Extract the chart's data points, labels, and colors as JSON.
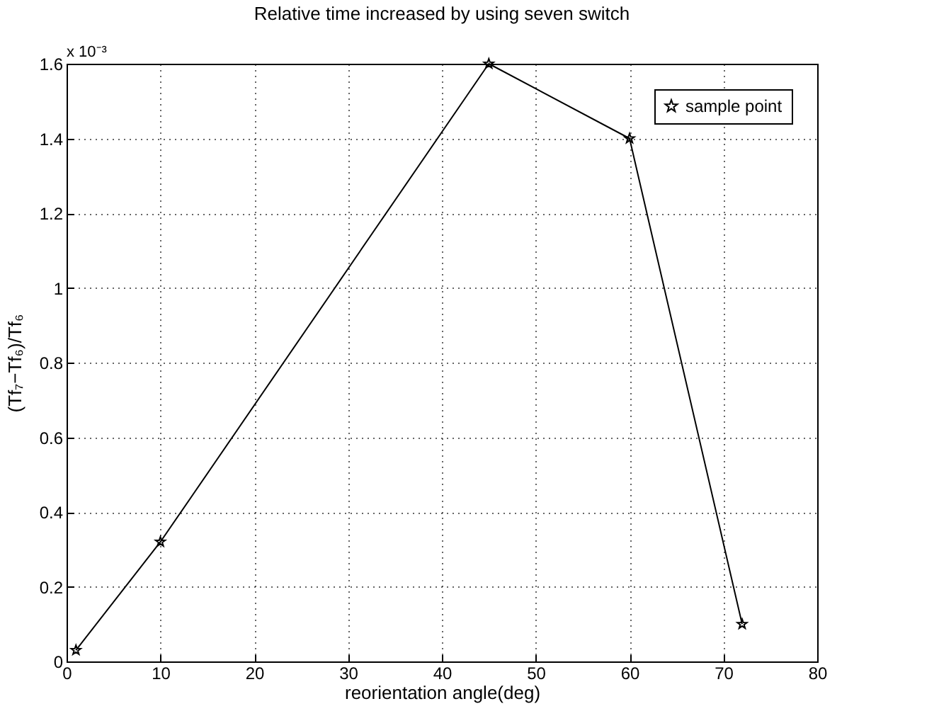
{
  "chart_data": {
    "type": "line",
    "title": "Relative time increased by using seven switch",
    "xlabel": "reorientation angle(deg)",
    "ylabel": "(Tf₇−Tf₆)/Tf₆",
    "x": [
      1,
      10,
      45,
      60,
      72
    ],
    "series": [
      {
        "name": "sample point",
        "color": "#000000",
        "values": [
          0.03,
          0.32,
          1.6,
          1.4,
          0.1
        ]
      }
    ],
    "xlim": [
      0,
      80
    ],
    "xticks": [
      0,
      10,
      20,
      30,
      40,
      50,
      60,
      70,
      80
    ],
    "ylim": [
      0,
      1.6
    ],
    "yticks": [
      0,
      0.2,
      0.4,
      0.6,
      0.8,
      1,
      1.2,
      1.4,
      1.6
    ],
    "annotations": [
      "x 10⁻³"
    ],
    "grid": true,
    "legend": "top right",
    "marker": "star",
    "line_style": "solid"
  }
}
